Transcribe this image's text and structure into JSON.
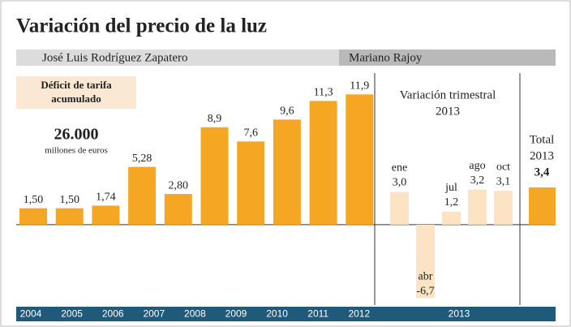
{
  "chart_data": {
    "type": "bar",
    "title": "Variación del precio de la luz",
    "period_labels": [
      "José Luis Rodríguez Zapatero",
      "Mariano Rajoy"
    ],
    "annotation": {
      "lines": [
        "Déficit de tarifa",
        "acumulado"
      ],
      "amount": "26.000",
      "unit": "millones de euros"
    },
    "ylim": [
      -6.9,
      13.5
    ],
    "series": [
      {
        "values": [
          1.5,
          1.5,
          1.74,
          5.28,
          2.8,
          8.9,
          7.6,
          9.6,
          11.3,
          11.9
        ],
        "value_labels": [
          "1,50",
          "1,50",
          "1,74",
          "5,28",
          "2,80",
          "8,9",
          "7,6",
          "9,6",
          "11,3",
          "11,9"
        ],
        "color": "#f5a623"
      },
      {
        "name": [
          "Variación trimestral",
          "2013"
        ],
        "categories": [
          "ene",
          "abr",
          "jul",
          "ago",
          "oct"
        ],
        "values": [
          3.0,
          -6.7,
          1.2,
          3.2,
          3.1
        ],
        "value_labels": [
          "3,0",
          "-6,7",
          "1,2",
          "3,2",
          "3,1"
        ],
        "color": "#fbe3c4"
      },
      {
        "name": [
          "Total",
          "2013"
        ],
        "values": [
          3.4
        ],
        "value_labels": [
          "3,4"
        ],
        "color": "#f5a623"
      }
    ],
    "year_labels": [
      "2004",
      "2005",
      "2006",
      "2007",
      "2008",
      "2009",
      "2010",
      "2011",
      "2012",
      "2013"
    ]
  }
}
